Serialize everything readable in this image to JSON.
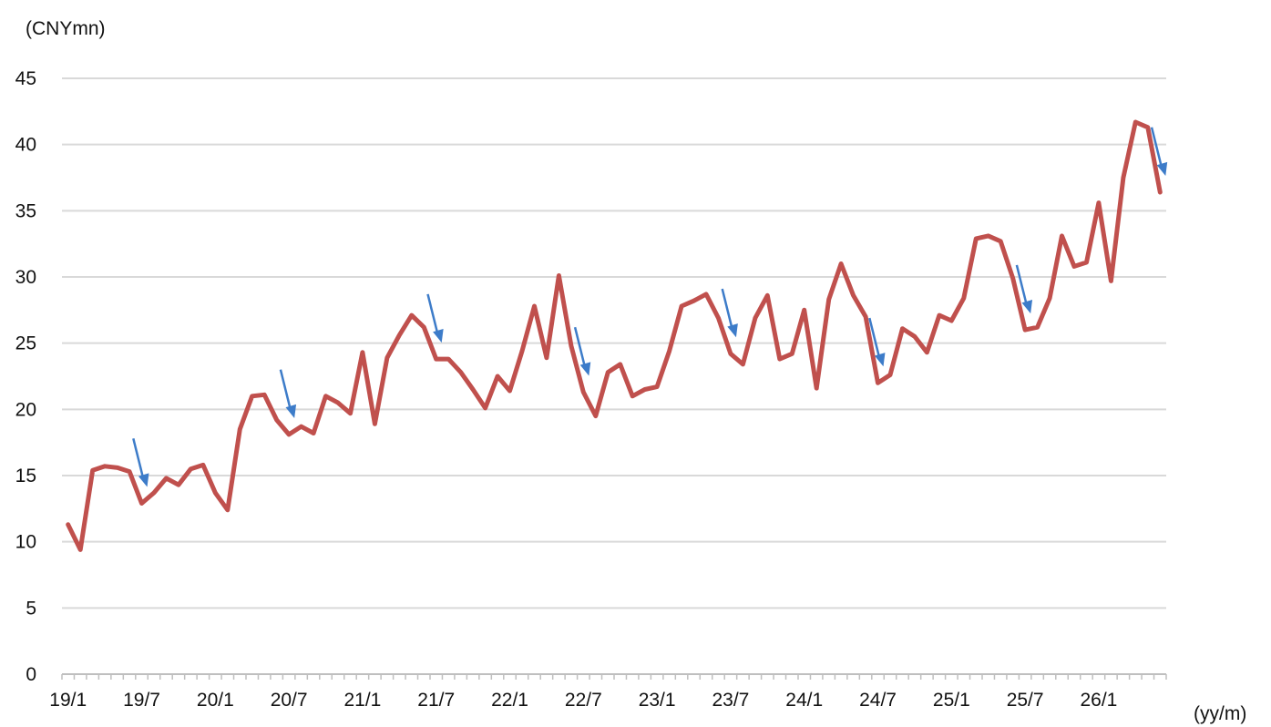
{
  "chart_data": {
    "type": "line",
    "title": "",
    "ylabel": "(CNYmn)",
    "xlabel": "(yy/m)",
    "ylim": [
      0,
      45
    ],
    "yticks": [
      0,
      5,
      10,
      15,
      20,
      25,
      30,
      35,
      40,
      45
    ],
    "grid": true,
    "x_tick_labels": [
      "19/1",
      "19/7",
      "20/1",
      "20/7",
      "21/1",
      "21/7",
      "22/1",
      "22/7",
      "23/1",
      "23/7",
      "24/1",
      "24/7",
      "25/1",
      "25/7",
      "26/1"
    ],
    "x": [
      "19/1",
      "19/2",
      "19/3",
      "19/4",
      "19/5",
      "19/6",
      "19/7",
      "19/8",
      "19/9",
      "19/10",
      "19/11",
      "19/12",
      "20/1",
      "20/2",
      "20/3",
      "20/4",
      "20/5",
      "20/6",
      "20/7",
      "20/8",
      "20/9",
      "20/10",
      "20/11",
      "20/12",
      "21/1",
      "21/2",
      "21/3",
      "21/4",
      "21/5",
      "21/6",
      "21/7",
      "21/8",
      "21/9",
      "21/10",
      "21/11",
      "21/12",
      "22/1",
      "22/2",
      "22/3",
      "22/4",
      "22/5",
      "22/6",
      "22/7",
      "22/8",
      "22/9",
      "22/10",
      "22/11",
      "22/12",
      "23/1",
      "23/2",
      "23/3",
      "23/4",
      "23/5",
      "23/6",
      "23/7",
      "23/8",
      "23/9",
      "23/10",
      "23/11",
      "23/12",
      "24/1",
      "24/2",
      "24/3",
      "24/4",
      "24/5",
      "24/6",
      "24/7",
      "24/8",
      "24/9",
      "24/10",
      "24/11",
      "24/12",
      "25/1",
      "25/2",
      "25/3",
      "25/4",
      "25/5",
      "25/6",
      "25/7",
      "25/8",
      "25/9",
      "25/10",
      "25/11",
      "25/12",
      "26/1",
      "26/2",
      "26/3",
      "26/4",
      "26/5",
      "26/6"
    ],
    "series": [
      {
        "color": "#c0504d",
        "values": [
          11.3,
          9.4,
          15.4,
          15.7,
          15.6,
          15.3,
          12.9,
          13.7,
          14.8,
          14.3,
          15.5,
          15.8,
          13.7,
          12.4,
          18.5,
          21.0,
          21.1,
          19.2,
          18.1,
          18.7,
          18.2,
          21.0,
          20.5,
          19.7,
          24.3,
          18.9,
          23.9,
          25.6,
          27.1,
          26.2,
          23.8,
          23.8,
          22.8,
          21.5,
          20.1,
          22.5,
          21.4,
          24.4,
          27.8,
          23.9,
          30.1,
          24.8,
          21.3,
          19.5,
          22.8,
          23.4,
          21.0,
          21.5,
          21.7,
          24.4,
          27.8,
          28.2,
          28.7,
          26.9,
          24.2,
          23.4,
          26.9,
          28.6,
          23.8,
          24.2,
          27.5,
          21.6,
          28.3,
          31.0,
          28.6,
          27.0,
          22.0,
          22.6,
          26.1,
          25.5,
          24.3,
          27.1,
          26.7,
          28.4,
          32.9,
          33.1,
          32.7,
          29.9,
          26.0,
          26.2,
          28.4,
          33.1,
          30.8,
          31.1,
          35.6,
          29.7,
          37.5,
          41.7,
          41.3,
          36.4
        ]
      }
    ],
    "annotations": {
      "arrow_color": "#3d7cc9",
      "arrows_at": [
        "19/7",
        "20/7",
        "21/7",
        "22/7",
        "23/7",
        "24/7",
        "25/7",
        "26/6"
      ]
    }
  }
}
